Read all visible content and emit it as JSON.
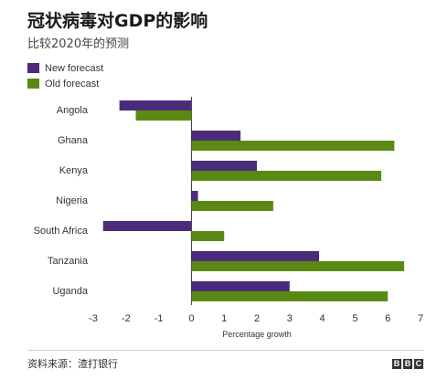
{
  "header": {
    "title": "冠状病毒对GDP的影响",
    "subtitle": "比较2020年的预测"
  },
  "footer": {
    "source": "资料来源：渣打银行",
    "logo_letters": [
      "B",
      "B",
      "C"
    ]
  },
  "chart_data": {
    "type": "bar",
    "orientation": "horizontal",
    "categories": [
      "Angola",
      "Ghana",
      "Kenya",
      "Nigeria",
      "South Africa",
      "Tanzania",
      "Uganda"
    ],
    "series": [
      {
        "name": "New forecast",
        "color": "#4b2c7a",
        "values": [
          -2.2,
          1.5,
          2.0,
          0.2,
          -2.7,
          3.9,
          3.0
        ]
      },
      {
        "name": "Old forecast",
        "color": "#5b8a14",
        "values": [
          -1.7,
          6.2,
          5.8,
          2.5,
          1.0,
          6.5,
          6.0
        ]
      }
    ],
    "xlabel": "Percentage growth",
    "ylabel": "",
    "xlim": [
      -3,
      7
    ],
    "xticks": [
      -3,
      -2,
      -1,
      0,
      1,
      2,
      3,
      4,
      5,
      6,
      7
    ],
    "grid": false,
    "legend": "top-left"
  }
}
